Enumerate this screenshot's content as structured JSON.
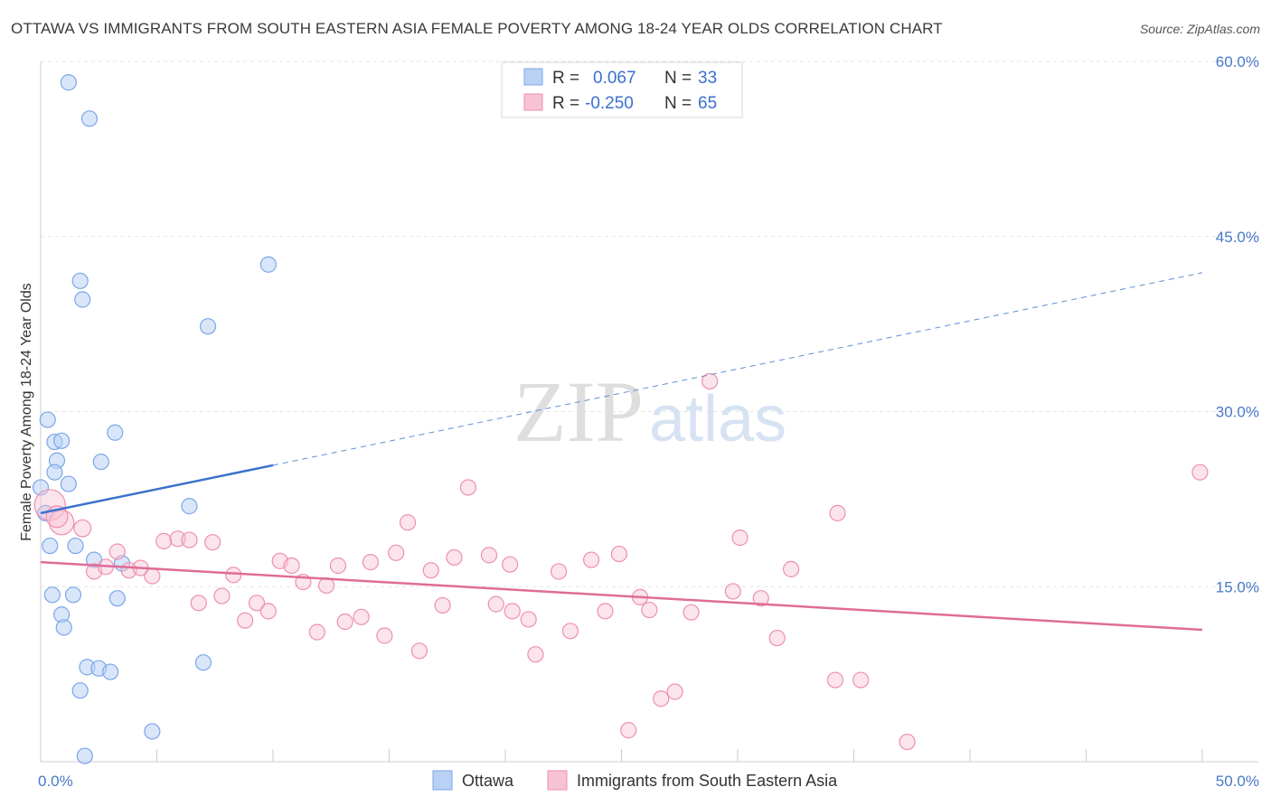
{
  "title": "OTTAWA VS IMMIGRANTS FROM SOUTH EASTERN ASIA FEMALE POVERTY AMONG 18-24 YEAR OLDS CORRELATION CHART",
  "source": "Source: ZipAtlas.com",
  "watermark": {
    "zip": "ZIP",
    "atlas": "atlas"
  },
  "chart_data": {
    "type": "scatter",
    "title": "OTTAWA VS IMMIGRANTS FROM SOUTH EASTERN ASIA FEMALE POVERTY AMONG 18-24 YEAR OLDS CORRELATION CHART",
    "xlabel": "",
    "ylabel": "Female Poverty Among 18-24 Year Olds",
    "xlim": [
      0,
      50
    ],
    "ylim": [
      0,
      60
    ],
    "x_tick_labels": [
      "0.0%",
      "50.0%"
    ],
    "y_ticks": [
      15,
      30,
      45,
      60
    ],
    "y_tick_labels": [
      "15.0%",
      "30.0%",
      "45.0%",
      "60.0%"
    ],
    "grid": true,
    "legend": [
      {
        "name": "Ottawa",
        "r_label": "R =",
        "r_value": "0.067",
        "n_label": "N =",
        "n_value": "33",
        "color": "#7aa6e8",
        "fill": "#b9d1f5"
      },
      {
        "name": "Immigrants from South Eastern Asia",
        "r_label": "R =",
        "r_value": "-0.250",
        "n_label": "N =",
        "n_value": "65",
        "color": "#ee8fae",
        "fill": "#f7c3d4"
      }
    ],
    "series": [
      {
        "name": "Ottawa",
        "color": "#7aa6e8",
        "points": [
          [
            1.2,
            58.2
          ],
          [
            2.1,
            55.1
          ],
          [
            1.7,
            41.2
          ],
          [
            1.8,
            39.6
          ],
          [
            9.8,
            42.6
          ],
          [
            7.2,
            37.3
          ],
          [
            0.3,
            29.3
          ],
          [
            0.6,
            27.4
          ],
          [
            0.9,
            27.5
          ],
          [
            3.2,
            28.2
          ],
          [
            0.7,
            25.8
          ],
          [
            2.6,
            25.7
          ],
          [
            0.6,
            24.8
          ],
          [
            1.2,
            23.8
          ],
          [
            0.0,
            23.5
          ],
          [
            6.4,
            21.9
          ],
          [
            0.2,
            21.3
          ],
          [
            0.4,
            18.5
          ],
          [
            1.5,
            18.5
          ],
          [
            2.3,
            17.3
          ],
          [
            3.5,
            17.0
          ],
          [
            0.5,
            14.3
          ],
          [
            1.4,
            14.3
          ],
          [
            3.3,
            14.0
          ],
          [
            0.9,
            12.6
          ],
          [
            1.0,
            11.5
          ],
          [
            2.0,
            8.1
          ],
          [
            2.5,
            8.0
          ],
          [
            3.0,
            7.7
          ],
          [
            7.0,
            8.5
          ],
          [
            1.7,
            6.1
          ],
          [
            4.8,
            2.6
          ],
          [
            1.9,
            0.5
          ]
        ],
        "sizes": [
          1,
          1,
          1,
          1,
          1,
          1,
          1,
          1,
          1,
          1,
          1,
          1,
          1,
          1,
          1,
          1,
          1,
          1,
          1,
          1,
          1,
          1,
          1,
          1,
          1,
          1,
          1,
          1,
          1,
          1,
          1,
          1,
          1
        ],
        "trend": {
          "x0": 0,
          "y0": 21.3,
          "x1": 10,
          "y1": 25.4,
          "dash_x1": 50,
          "dash_y1": 41.9
        }
      },
      {
        "name": "Immigrants from South Eastern Asia",
        "color": "#ee8fae",
        "points": [
          [
            0.4,
            22.0
          ],
          [
            0.9,
            20.5
          ],
          [
            1.8,
            20.0
          ],
          [
            2.3,
            16.3
          ],
          [
            2.8,
            16.7
          ],
          [
            3.3,
            18.0
          ],
          [
            3.8,
            16.4
          ],
          [
            4.3,
            16.6
          ],
          [
            4.8,
            15.9
          ],
          [
            5.3,
            18.9
          ],
          [
            5.9,
            19.1
          ],
          [
            6.4,
            19.0
          ],
          [
            6.8,
            13.6
          ],
          [
            7.4,
            18.8
          ],
          [
            7.8,
            14.2
          ],
          [
            8.3,
            16.0
          ],
          [
            8.8,
            12.1
          ],
          [
            9.3,
            13.6
          ],
          [
            9.8,
            12.9
          ],
          [
            10.3,
            17.2
          ],
          [
            10.8,
            16.8
          ],
          [
            11.3,
            15.4
          ],
          [
            11.9,
            11.1
          ],
          [
            12.3,
            15.1
          ],
          [
            12.8,
            16.8
          ],
          [
            13.1,
            12.0
          ],
          [
            13.8,
            12.4
          ],
          [
            14.2,
            17.1
          ],
          [
            14.8,
            10.8
          ],
          [
            15.3,
            17.9
          ],
          [
            15.8,
            20.5
          ],
          [
            16.3,
            9.5
          ],
          [
            16.8,
            16.4
          ],
          [
            17.3,
            13.4
          ],
          [
            17.8,
            17.5
          ],
          [
            18.4,
            23.5
          ],
          [
            19.3,
            17.7
          ],
          [
            19.6,
            13.5
          ],
          [
            20.2,
            16.9
          ],
          [
            20.3,
            12.9
          ],
          [
            21.0,
            12.2
          ],
          [
            21.3,
            9.2
          ],
          [
            22.3,
            16.3
          ],
          [
            22.8,
            11.2
          ],
          [
            23.7,
            17.3
          ],
          [
            24.3,
            12.9
          ],
          [
            24.9,
            17.8
          ],
          [
            25.3,
            2.7
          ],
          [
            25.8,
            14.1
          ],
          [
            26.2,
            13.0
          ],
          [
            26.7,
            5.4
          ],
          [
            27.3,
            6.0
          ],
          [
            28.0,
            12.8
          ],
          [
            28.8,
            32.6
          ],
          [
            29.8,
            14.6
          ],
          [
            30.1,
            19.2
          ],
          [
            31.0,
            14.0
          ],
          [
            31.7,
            10.6
          ],
          [
            32.3,
            16.5
          ],
          [
            34.2,
            7.0
          ],
          [
            34.3,
            21.3
          ],
          [
            35.3,
            7.0
          ],
          [
            37.3,
            1.7
          ],
          [
            49.9,
            24.8
          ],
          [
            0.7,
            21.0
          ]
        ],
        "sizes": [
          2,
          1.6,
          1.1,
          1,
          1,
          1,
          1,
          1,
          1,
          1,
          1,
          1,
          1,
          1,
          1,
          1,
          1,
          1,
          1,
          1,
          1,
          1,
          1,
          1,
          1,
          1,
          1,
          1,
          1,
          1,
          1,
          1,
          1,
          1,
          1,
          1,
          1,
          1,
          1,
          1,
          1,
          1,
          1,
          1,
          1,
          1,
          1,
          1,
          1,
          1,
          1,
          1,
          1,
          1,
          1,
          1,
          1,
          1,
          1,
          1,
          1,
          1,
          1,
          1,
          1.4
        ],
        "trend": {
          "x0": 0,
          "y0": 17.1,
          "x1": 50,
          "y1": 11.3
        }
      }
    ]
  }
}
